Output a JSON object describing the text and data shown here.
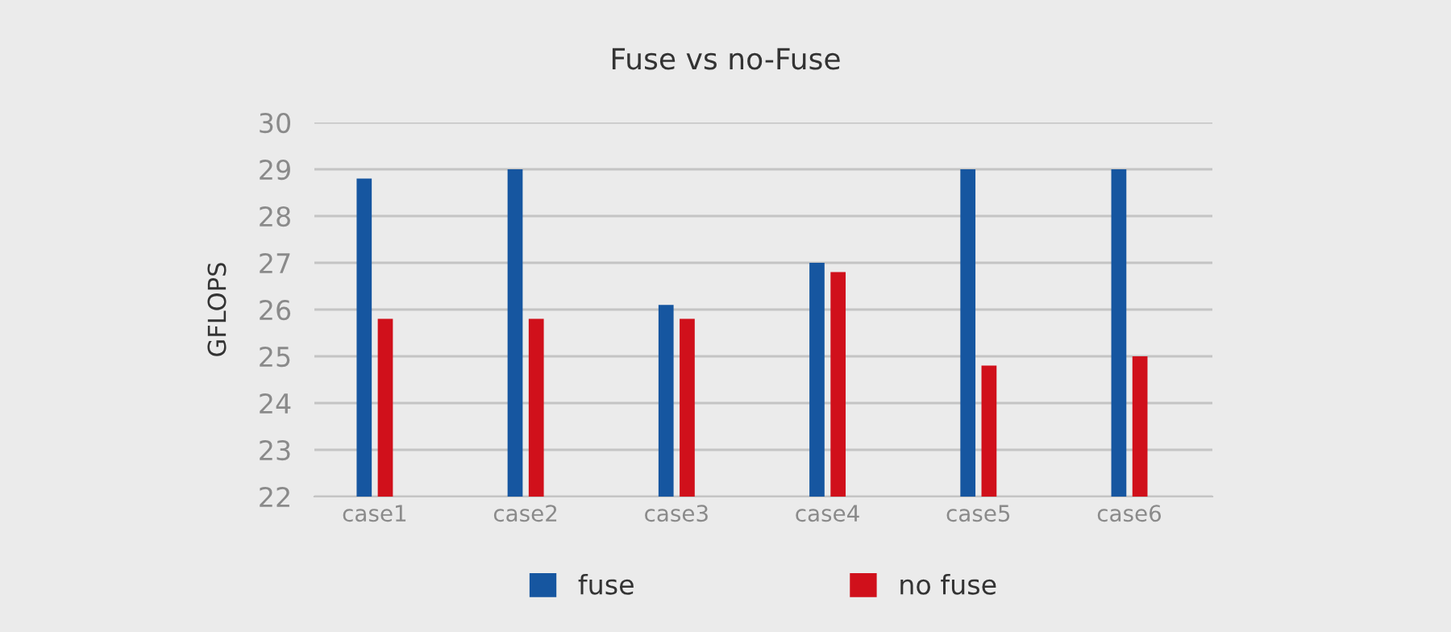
{
  "chart_data": {
    "type": "bar",
    "title": "Fuse vs no-Fuse",
    "ylabel": "GFLOPS",
    "categories": [
      "case1",
      "case2",
      "case3",
      "case4",
      "case5",
      "case6"
    ],
    "series": [
      {
        "name": "fuse",
        "color": "#1656a0",
        "values": [
          28.8,
          29.0,
          26.1,
          27.0,
          29.0,
          29.0
        ]
      },
      {
        "name": "no fuse",
        "color": "#d0101b",
        "values": [
          25.8,
          25.8,
          25.8,
          26.8,
          24.8,
          25.0
        ]
      }
    ],
    "ylim": [
      22,
      30
    ],
    "yticks": [
      22,
      23,
      24,
      25,
      26,
      27,
      28,
      29,
      30
    ],
    "grid": "y",
    "legend": "bottom"
  }
}
